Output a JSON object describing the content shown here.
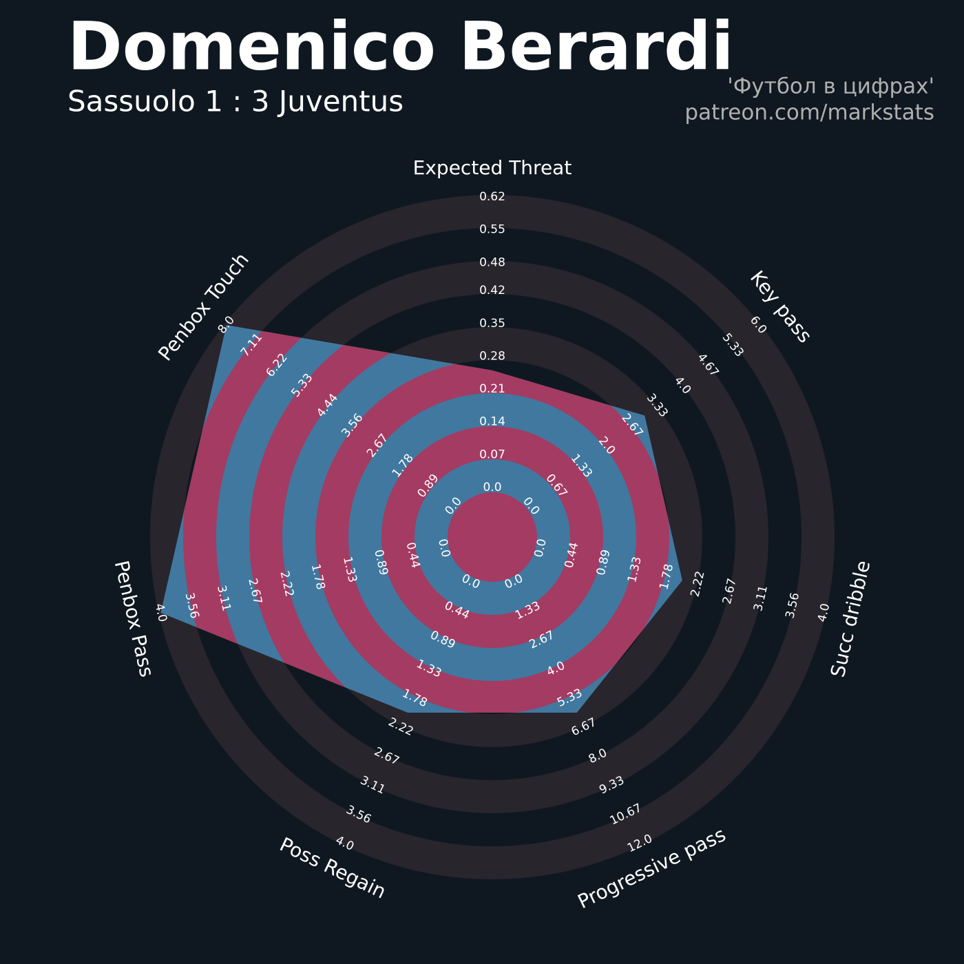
{
  "chart_data": {
    "type": "radar",
    "title": "Domenico Berardi",
    "subtitle": "Sassuolo 1 : 3 Juventus",
    "annotations": [
      "'Футбол в цифрах'",
      "patreon.com/markstats"
    ],
    "categories": [
      "Expected Threat",
      "Key pass",
      "Succ dribble",
      "Progressive pass",
      "Poss Regain",
      "Penbox Pass",
      "Penbox Touch"
    ],
    "values": [
      0.25,
      3,
      2,
      6,
      2,
      4,
      8
    ],
    "color": "#41789f",
    "ring_color": "#28252c",
    "inner_ring_color": "#a43b62",
    "axes": [
      {
        "lim": [
          0,
          0.62
        ],
        "ticks": [
          {
            "value": 0,
            "label": "0.0"
          },
          0.07,
          0.14,
          0.21,
          0.28,
          0.35,
          0.42,
          0.48,
          0.55,
          0.62
        ]
      },
      {
        "lim": [
          0,
          6
        ],
        "ticks": [
          {
            "value": 0,
            "label": "0.0"
          },
          0.67,
          1.33,
          {
            "value": 2,
            "label": "2.0"
          },
          2.67,
          3.33,
          {
            "value": 4,
            "label": "4.0"
          },
          4.67,
          5.33,
          {
            "value": 6,
            "label": "6.0"
          }
        ]
      },
      {
        "lim": [
          0,
          4
        ],
        "ticks": [
          {
            "value": 0,
            "label": "0.0"
          },
          0.44,
          0.89,
          1.33,
          1.78,
          2.22,
          2.67,
          3.11,
          3.56,
          {
            "value": 4,
            "label": "4.0"
          }
        ]
      },
      {
        "lim": [
          0,
          12
        ],
        "ticks": [
          {
            "value": 0,
            "label": "0.0"
          },
          1.33,
          2.67,
          {
            "value": 4,
            "label": "4.0"
          },
          5.33,
          6.67,
          {
            "value": 8,
            "label": "8.0"
          },
          9.33,
          10.67,
          {
            "value": 12,
            "label": "12.0"
          }
        ]
      },
      {
        "lim": [
          0,
          4
        ],
        "ticks": [
          {
            "value": 0,
            "label": "0.0"
          },
          0.44,
          0.89,
          1.33,
          1.78,
          2.22,
          2.67,
          3.11,
          3.56,
          {
            "value": 4,
            "label": "4.0"
          }
        ]
      },
      {
        "lim": [
          0,
          4
        ],
        "ticks": [
          {
            "value": 0,
            "label": "0.0"
          },
          0.44,
          0.89,
          1.33,
          1.78,
          2.22,
          2.67,
          3.11,
          3.56,
          {
            "value": 4,
            "label": "4.0"
          }
        ]
      },
      {
        "lim": [
          0,
          8
        ],
        "ticks": [
          {
            "value": 0,
            "label": "0.0"
          },
          0.89,
          1.78,
          2.67,
          3.56,
          4.44,
          5.33,
          6.22,
          7.11,
          {
            "value": 8,
            "label": "8.0"
          }
        ]
      }
    ]
  }
}
